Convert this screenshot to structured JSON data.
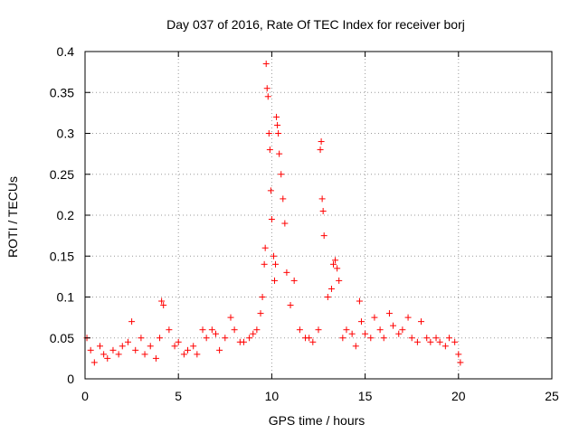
{
  "chart_data": {
    "type": "scatter",
    "title": "Day 037 of 2016, Rate Of TEC Index for receiver borj",
    "xlabel": "GPS time / hours",
    "ylabel": "ROTI / TECUs",
    "xlim": [
      0,
      25
    ],
    "ylim": [
      0,
      0.4
    ],
    "xticks": [
      0,
      5,
      10,
      15,
      20,
      25
    ],
    "yticks": [
      0,
      0.05,
      0.1,
      0.15,
      0.2,
      0.25,
      0.3,
      0.35,
      0.4
    ],
    "ytick_labels": [
      "0",
      "0.05",
      "0.1",
      "0.15",
      "0.2",
      "0.25",
      "0.3",
      "0.35",
      "0.4"
    ],
    "grid": true,
    "marker": "+",
    "color": "#ff0000",
    "series": [
      {
        "x": [
          0.1,
          0.3,
          0.5,
          0.8,
          1.0,
          1.2,
          1.5,
          1.8,
          2.0,
          2.3,
          2.5,
          2.7,
          3.0,
          3.2,
          3.5,
          3.8,
          4.0,
          4.1,
          4.2,
          4.5,
          4.8,
          5.0,
          5.3,
          5.5,
          5.8,
          6.0,
          6.3,
          6.5,
          6.8,
          7.0,
          7.2,
          7.5,
          7.8,
          8.0,
          8.3,
          8.5,
          8.8,
          9.0,
          9.2,
          9.4,
          9.5,
          9.6,
          9.65,
          9.7,
          9.75,
          9.8,
          9.85,
          9.9,
          9.95,
          10.0,
          10.1,
          10.15,
          10.2,
          10.25,
          10.3,
          10.35,
          10.4,
          10.5,
          10.6,
          10.7,
          10.8,
          11.0,
          11.2,
          11.5,
          11.8,
          12.0,
          12.2,
          12.5,
          12.6,
          12.65,
          12.7,
          12.75,
          12.8,
          13.0,
          13.2,
          13.3,
          13.4,
          13.5,
          13.6,
          13.8,
          14.0,
          14.3,
          14.5,
          14.7,
          14.8,
          15.0,
          15.3,
          15.5,
          15.8,
          16.0,
          16.3,
          16.5,
          16.8,
          17.0,
          17.3,
          17.5,
          17.8,
          18.0,
          18.3,
          18.5,
          18.8,
          19.0,
          19.3,
          19.5,
          19.8,
          20.0,
          20.1
        ],
        "y": [
          0.05,
          0.035,
          0.02,
          0.04,
          0.03,
          0.025,
          0.035,
          0.03,
          0.04,
          0.045,
          0.07,
          0.035,
          0.05,
          0.03,
          0.04,
          0.025,
          0.05,
          0.095,
          0.09,
          0.06,
          0.04,
          0.045,
          0.03,
          0.035,
          0.04,
          0.03,
          0.06,
          0.05,
          0.06,
          0.055,
          0.035,
          0.05,
          0.075,
          0.06,
          0.045,
          0.045,
          0.05,
          0.055,
          0.06,
          0.08,
          0.1,
          0.14,
          0.16,
          0.385,
          0.355,
          0.345,
          0.3,
          0.28,
          0.23,
          0.195,
          0.15,
          0.12,
          0.14,
          0.32,
          0.31,
          0.3,
          0.275,
          0.25,
          0.22,
          0.19,
          0.13,
          0.09,
          0.12,
          0.06,
          0.05,
          0.05,
          0.045,
          0.06,
          0.28,
          0.29,
          0.22,
          0.205,
          0.175,
          0.1,
          0.11,
          0.14,
          0.145,
          0.135,
          0.12,
          0.05,
          0.06,
          0.055,
          0.04,
          0.095,
          0.07,
          0.055,
          0.05,
          0.075,
          0.06,
          0.05,
          0.08,
          0.065,
          0.055,
          0.06,
          0.075,
          0.05,
          0.045,
          0.07,
          0.05,
          0.045,
          0.05,
          0.045,
          0.04,
          0.05,
          0.045,
          0.03,
          0.02
        ]
      }
    ]
  }
}
